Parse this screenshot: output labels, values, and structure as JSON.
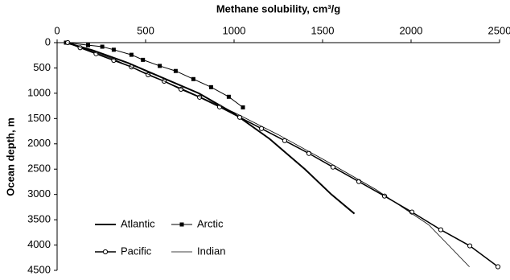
{
  "chart_data": {
    "type": "line",
    "title": "Methane  solubility, cm³/g",
    "y_label": "Ocean depth, m",
    "xlim": [
      0,
      2500
    ],
    "xticks": [
      0,
      500,
      1000,
      1500,
      2000,
      2500
    ],
    "ylim": [
      0,
      4500
    ],
    "yticks": [
      0,
      500,
      1000,
      1500,
      2000,
      2500,
      3000,
      3500,
      4000,
      4500
    ],
    "y_inverted": true,
    "x_axis_position": "top",
    "grid": false,
    "series": [
      {
        "name": "Atlantic",
        "color": "#000000",
        "marker": "none",
        "width": 2,
        "x": [
          50,
          200,
          400,
          600,
          800,
          1000,
          1200,
          1400,
          1550,
          1680
        ],
        "values": [
          0,
          150,
          400,
          700,
          1000,
          1400,
          1900,
          2500,
          3000,
          3380
        ]
      },
      {
        "name": "Arctic",
        "color": "#000000",
        "marker": "square",
        "width": 1,
        "x": [
          50,
          175,
          255,
          320,
          420,
          485,
          580,
          670,
          770,
          870,
          970,
          1050
        ],
        "values": [
          0,
          50,
          80,
          140,
          240,
          340,
          460,
          560,
          720,
          880,
          1070,
          1280
        ]
      },
      {
        "name": "Pacific",
        "color": "#000000",
        "marker": "circle",
        "width": 1.5,
        "x": [
          60,
          130,
          220,
          320,
          420,
          514,
          605,
          700,
          805,
          918,
          1032,
          1155,
          1286,
          1423,
          1559,
          1705,
          1850,
          2005,
          2168,
          2332,
          2491
        ],
        "values": [
          0,
          100,
          220,
          350,
          480,
          635,
          762,
          921,
          1079,
          1270,
          1476,
          1698,
          1937,
          2190,
          2460,
          2746,
          3032,
          3349,
          3698,
          4016,
          4429
        ]
      },
      {
        "name": "Indian",
        "color": "#000000",
        "marker": "none",
        "width": 0.8,
        "x": [
          60,
          300,
          500,
          750,
          1000,
          1250,
          1500,
          1800,
          2100,
          2330
        ],
        "values": [
          0,
          300,
          600,
          980,
          1380,
          1820,
          2300,
          2900,
          3600,
          4430
        ]
      }
    ]
  }
}
